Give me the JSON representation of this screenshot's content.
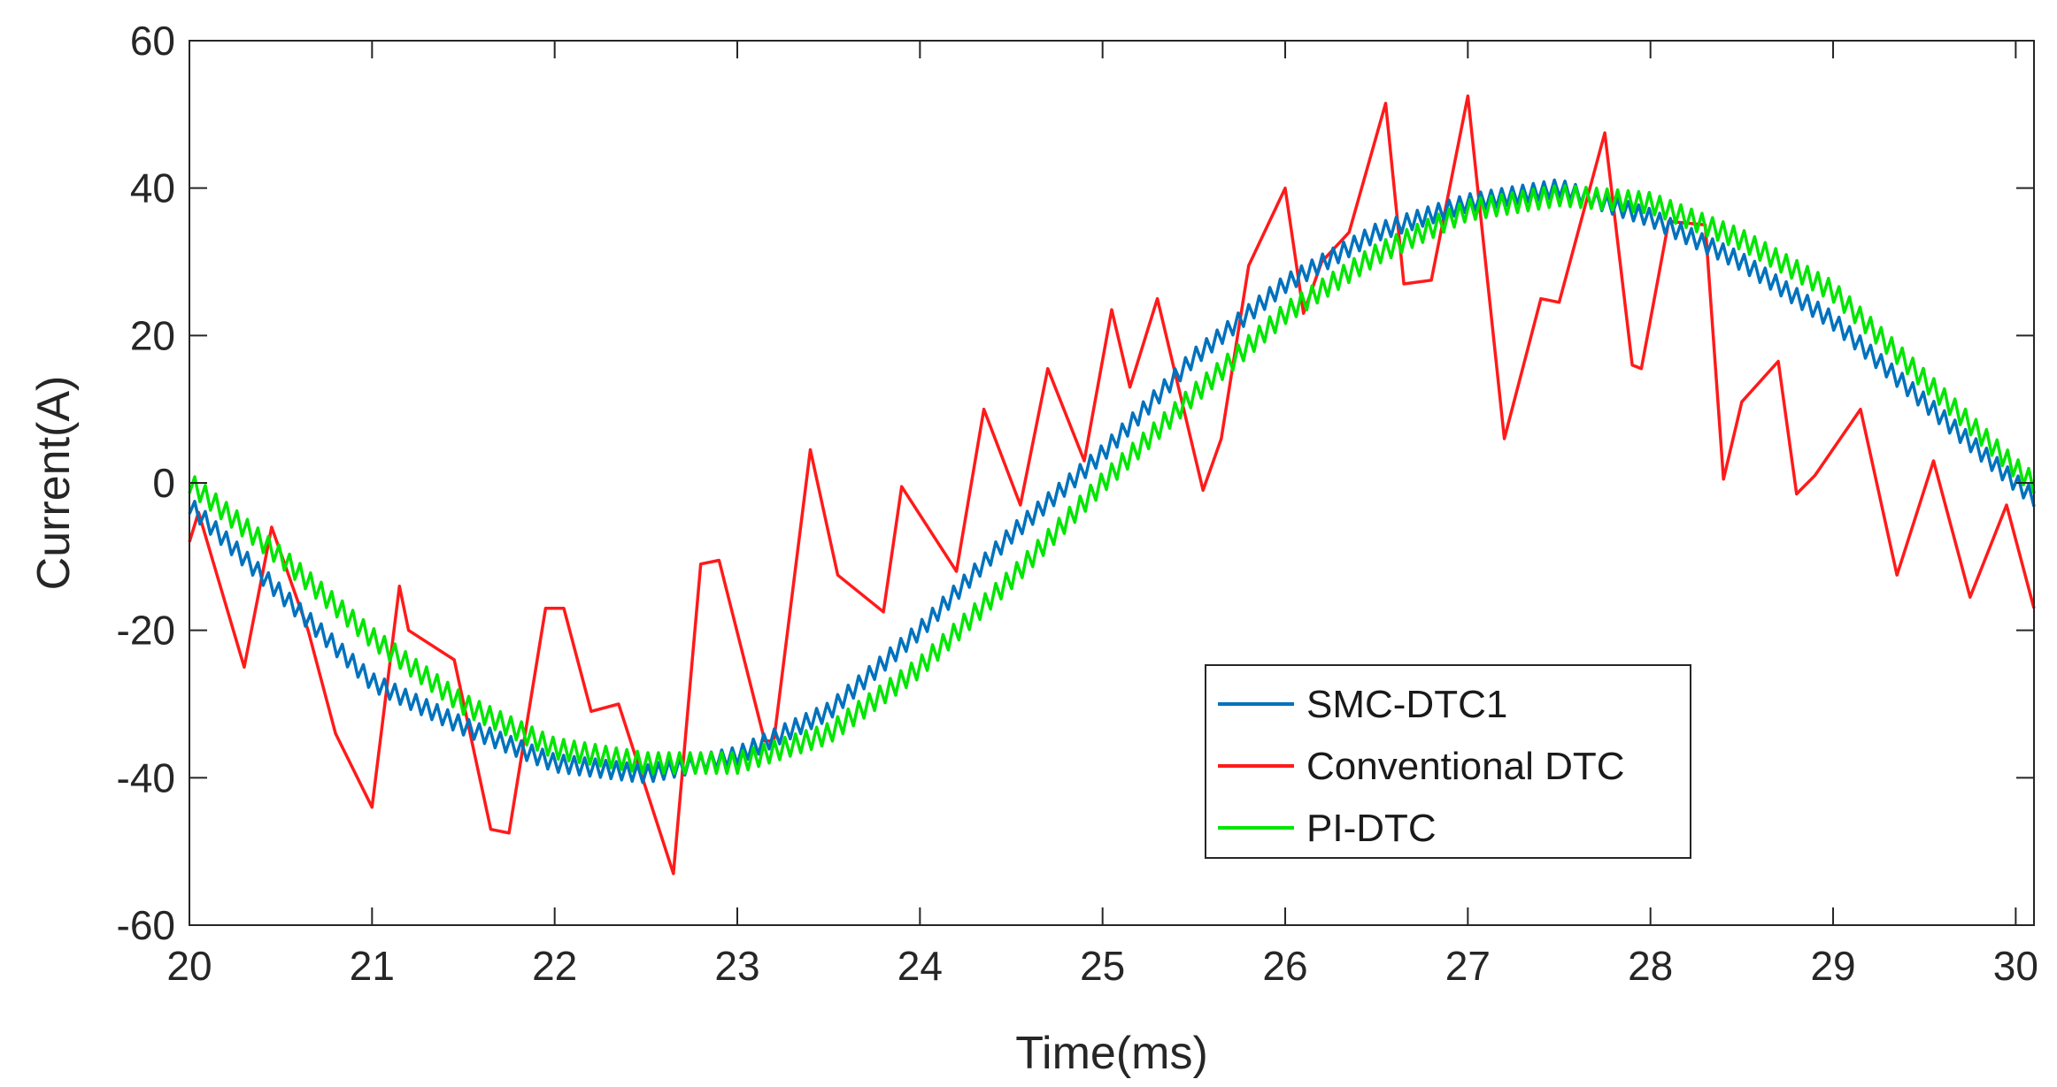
{
  "chart_data": {
    "type": "line",
    "xlabel": "Time(ms)",
    "ylabel": "Current(A)",
    "xlim": [
      20,
      30.1
    ],
    "ylim": [
      -60,
      60
    ],
    "x_ticks": [
      20,
      21,
      22,
      23,
      24,
      25,
      26,
      27,
      28,
      29,
      30
    ],
    "y_ticks": [
      -60,
      -40,
      -20,
      0,
      20,
      40,
      60
    ],
    "grid": false,
    "legend_position": "bottom-right",
    "series": [
      {
        "name": "SMC-DTC1",
        "color": "#0072BD",
        "ripple": 1.2,
        "x": [
          20.0,
          20.5,
          21.0,
          21.5,
          22.0,
          22.5,
          23.0,
          23.5,
          24.0,
          24.5,
          25.0,
          25.5,
          26.0,
          26.5,
          27.0,
          27.5,
          28.0,
          28.5,
          29.0,
          29.5,
          30.0,
          30.1
        ],
        "y": [
          -3,
          -15,
          -27,
          -33,
          -38,
          -39.5,
          -37,
          -31,
          -20,
          -7,
          4,
          17,
          27,
          34,
          38,
          40,
          36,
          30,
          22,
          11,
          0,
          -2
        ]
      },
      {
        "name": "Conventional DTC",
        "color": "#FF1A1A",
        "x": [
          20.0,
          20.05,
          20.3,
          20.45,
          20.65,
          20.8,
          21.0,
          21.15,
          21.2,
          21.45,
          21.65,
          21.75,
          21.95,
          22.05,
          22.2,
          22.35,
          22.65,
          22.8,
          22.9,
          23.15,
          23.2,
          23.4,
          23.55,
          23.8,
          23.9,
          24.2,
          24.35,
          24.55,
          24.7,
          24.9,
          25.05,
          25.15,
          25.3,
          25.55,
          25.65,
          25.8,
          26.0,
          26.1,
          26.2,
          26.35,
          26.55,
          26.65,
          26.8,
          27.0,
          27.2,
          27.4,
          27.5,
          27.75,
          27.9,
          27.95,
          28.1,
          28.3,
          28.4,
          28.5,
          28.7,
          28.8,
          28.9,
          29.15,
          29.35,
          29.55,
          29.75,
          29.95,
          30.1
        ],
        "y": [
          -8,
          -4,
          -25,
          -6,
          -20,
          -34,
          -44,
          -14,
          -20,
          -24,
          -47,
          -47.5,
          -17,
          -17,
          -31,
          -30,
          -53,
          -11,
          -10.5,
          -35,
          -35,
          4.5,
          -12.5,
          -17.5,
          -0.5,
          -12,
          10,
          -3,
          15.5,
          3,
          23.5,
          13,
          25,
          -1,
          6,
          29.5,
          40,
          23,
          30,
          34,
          51.5,
          27,
          27.5,
          52.5,
          6,
          25,
          24.5,
          47.5,
          16,
          15.5,
          35.5,
          35,
          0.5,
          11,
          16.5,
          -1.5,
          1,
          10,
          -12.5,
          3,
          -15.5,
          -3,
          -17
        ]
      },
      {
        "name": "PI-DTC",
        "color": "#00E600",
        "ripple": 1.4,
        "x": [
          20.0,
          20.5,
          21.0,
          21.5,
          22.0,
          22.5,
          23.0,
          23.5,
          24.0,
          24.5,
          25.0,
          25.5,
          26.0,
          26.5,
          27.0,
          27.5,
          28.0,
          28.5,
          29.0,
          29.5,
          30.0,
          30.1
        ],
        "y": [
          0,
          -10,
          -21,
          -30,
          -36,
          -38,
          -38,
          -34,
          -25,
          -13,
          0,
          12,
          23,
          31,
          37,
          39,
          38,
          33,
          26,
          14,
          2,
          0
        ]
      }
    ]
  }
}
